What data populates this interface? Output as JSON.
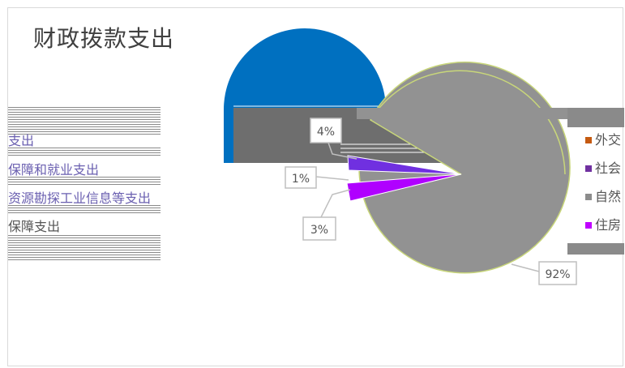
{
  "chart_data": {
    "type": "pie",
    "title": "财政拨款支出",
    "slices": [
      {
        "label": "4%",
        "value": 4,
        "color": "#0070c0"
      },
      {
        "label": "1%",
        "value": 1,
        "color": "#7030a0"
      },
      {
        "label": "3%",
        "value": 3,
        "color": "#a020f0"
      },
      {
        "label": "92%",
        "value": 92,
        "color": "#929292"
      }
    ],
    "left_legend": [
      "支出",
      "保障和就业支出",
      "资源勘探工业信息等支出",
      "保障支出"
    ],
    "right_legend": [
      {
        "text": "外交",
        "color": "#c55a11"
      },
      {
        "text": "社会",
        "color": "#7030a0"
      },
      {
        "text": "自然",
        "color": "#8c8c8c"
      },
      {
        "text": "住房",
        "color": "#c000ff"
      }
    ]
  }
}
